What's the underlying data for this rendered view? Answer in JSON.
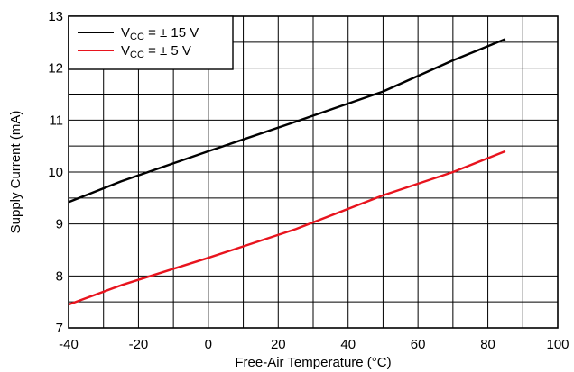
{
  "chart_data": {
    "type": "line",
    "xlabel": "Free-Air Temperature (°C)",
    "ylabel": "Supply Current (mA)",
    "xlim": [
      -40,
      100
    ],
    "ylim": [
      7,
      13
    ],
    "x_ticks": [
      -40,
      -20,
      0,
      20,
      40,
      60,
      80,
      100
    ],
    "y_ticks": [
      7,
      8,
      9,
      10,
      11,
      12,
      13
    ],
    "x_minor_step": 10,
    "y_minor_step": 0.5,
    "grid": true,
    "legend_position": "top-left",
    "series": [
      {
        "name_main": "V",
        "name_sub": "CC",
        "name_rest": " = ± 15 V",
        "color": "#000000",
        "x": [
          -40,
          -25,
          0,
          25,
          50,
          70,
          85
        ],
        "y": [
          9.42,
          9.82,
          10.4,
          10.97,
          11.55,
          12.15,
          12.56
        ]
      },
      {
        "name_main": "V",
        "name_sub": "CC",
        "name_rest": " = ± 5 V",
        "color": "#e8141e",
        "x": [
          -40,
          -25,
          0,
          25,
          50,
          70,
          85
        ],
        "y": [
          7.45,
          7.82,
          8.35,
          8.9,
          9.55,
          10.0,
          10.4
        ]
      }
    ]
  }
}
